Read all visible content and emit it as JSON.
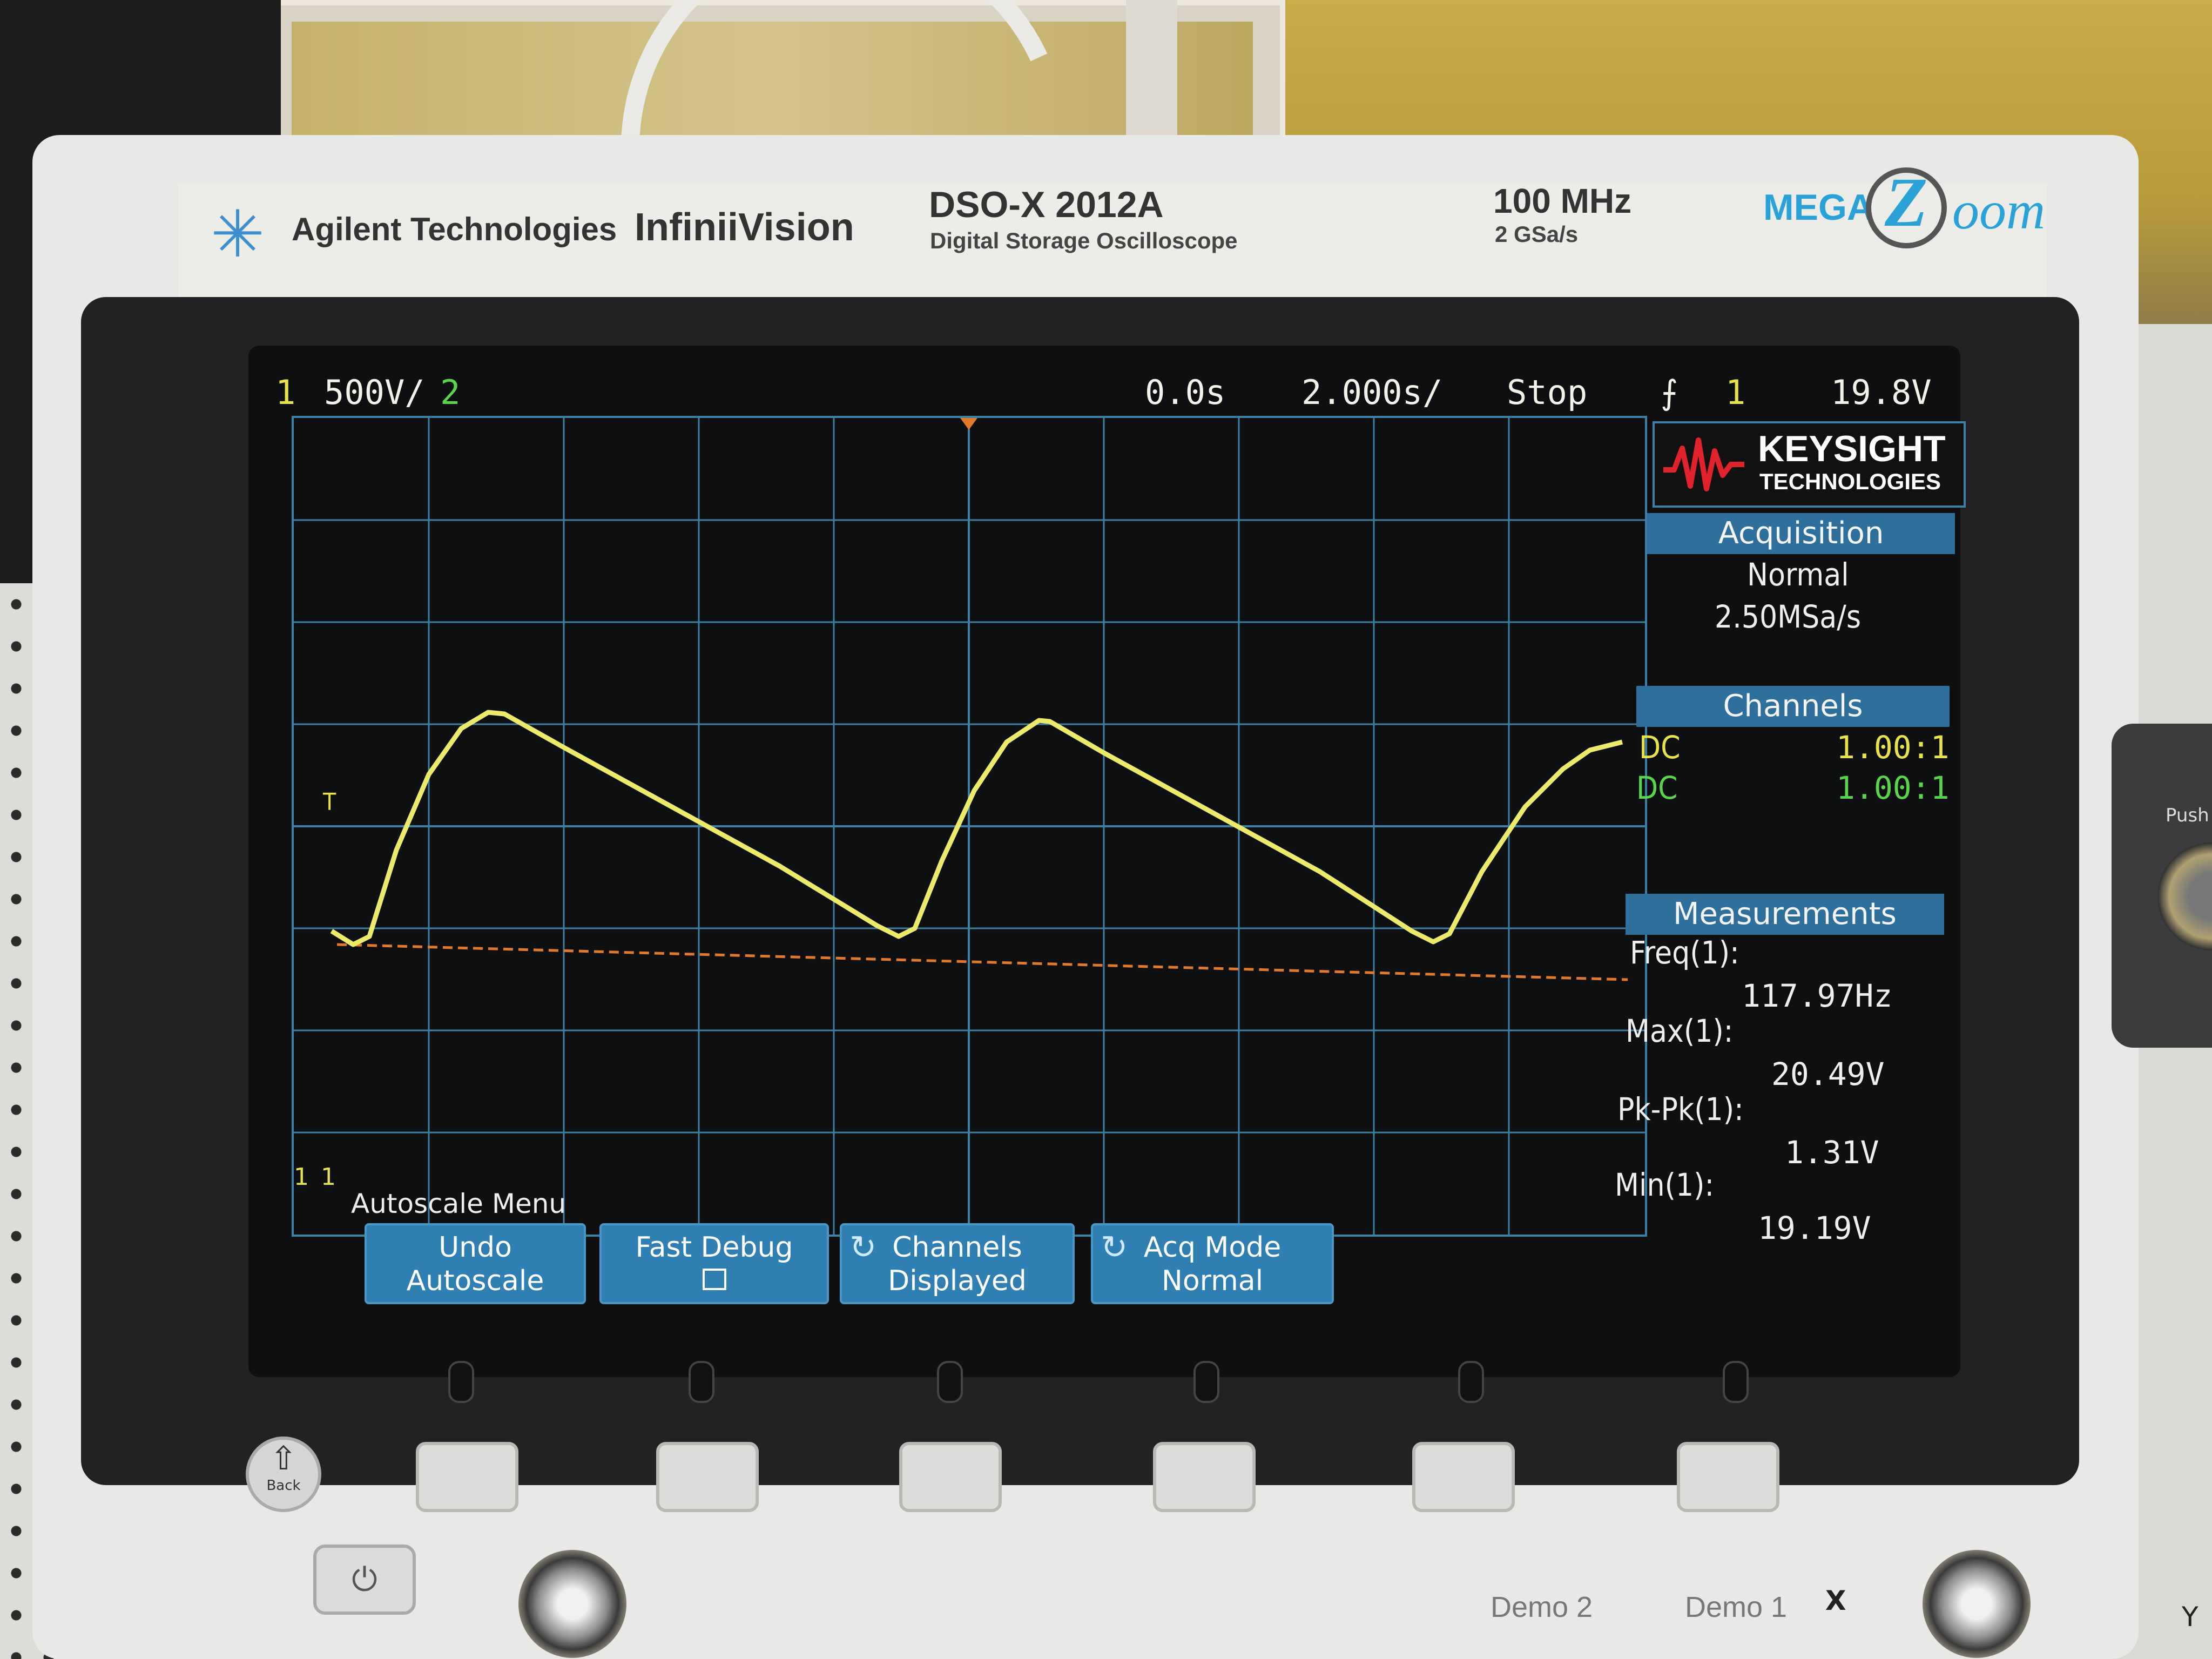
{
  "header": {
    "brand": "Agilent Technologies",
    "series": "InfiniiVision",
    "model": "DSO-X 2012A",
    "model_subtitle": "Digital Storage Oscilloscope",
    "bandwidth": "100 MHz",
    "sample_rate": "2 GSa/s",
    "megazoom_prefix": "MEGA",
    "megazoom_z": "Z",
    "megazoom_suffix": "oom"
  },
  "status_bar": {
    "ch1_label": "1",
    "ch1_scale": "500V/",
    "ch2_label": "2",
    "time_delay": "0.0s",
    "time_scale": "2.000s/",
    "run_state": "Stop",
    "trigger_icon": "trigger-edge-icon",
    "trigger_source": "1",
    "trigger_level": "19.8V"
  },
  "graticule_markers": {
    "trigger_level_marker": "T",
    "ground_marker": "1",
    "ground_marker_label": "1"
  },
  "side_panel": {
    "logo_line1": "KEYSIGHT",
    "logo_line2": "TECHNOLOGIES",
    "acquisition": {
      "title": "Acquisition",
      "mode": "Normal",
      "rate": "2.50MSa/s"
    },
    "channels": {
      "title": "Channels",
      "rows": [
        {
          "coupling": "DC",
          "probe": "1.00:1",
          "color": "#e7e24a"
        },
        {
          "coupling": "DC",
          "probe": "1.00:1",
          "color": "#59d44b"
        }
      ]
    },
    "measurements": {
      "title": "Measurements",
      "items": [
        {
          "name": "Freq(1):",
          "value": "117.97Hz"
        },
        {
          "name": "Max(1):",
          "value": "20.49V"
        },
        {
          "name": "Pk-Pk(1):",
          "value": "1.31V"
        },
        {
          "name": "Min(1):",
          "value": "19.19V"
        }
      ]
    }
  },
  "softkeys": {
    "menu_title": "Autoscale Menu",
    "keys": [
      {
        "line1": "Undo",
        "line2": "Autoscale"
      },
      {
        "line1": "Fast Debug",
        "line2": ""
      },
      {
        "line1": "Channels",
        "line2": "Displayed"
      },
      {
        "line1": "Acq Mode",
        "line2": "Normal"
      }
    ]
  },
  "front_panel": {
    "back_label": "Back",
    "demo2_label": "Demo 2",
    "demo1_label": "Demo 1",
    "x_label": "X",
    "y_label": "Y",
    "push_label": "Push"
  },
  "colors": {
    "ch1": "#e7e24a",
    "ch2": "#59d44b",
    "grid": "#3e7fa5",
    "trigger_line": "#e07a2a",
    "softkey": "#2f7fb2"
  }
}
